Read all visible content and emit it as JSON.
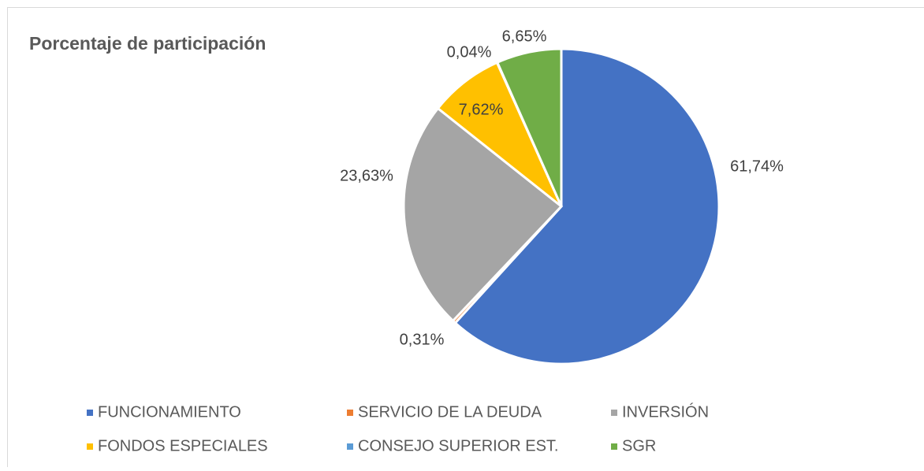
{
  "chart_data": {
    "type": "pie",
    "title": "Porcentaje de participación",
    "categories": [
      "FUNCIONAMIENTO",
      "SERVICIO DE LA DEUDA",
      "INVERSIÓN",
      "FONDOS ESPECIALES",
      "CONSEJO SUPERIOR EST.",
      "SGR"
    ],
    "values": [
      61.74,
      0.31,
      23.63,
      7.62,
      0.04,
      6.65
    ],
    "value_labels": [
      "61,74%",
      "0,31%",
      "23,63%",
      "7,62%",
      "0,04%",
      "6,65%"
    ],
    "colors": [
      "#4472c4",
      "#ed7d31",
      "#a5a5a5",
      "#ffc000",
      "#5b9bd5",
      "#70ad47"
    ],
    "legend": "bottom"
  }
}
